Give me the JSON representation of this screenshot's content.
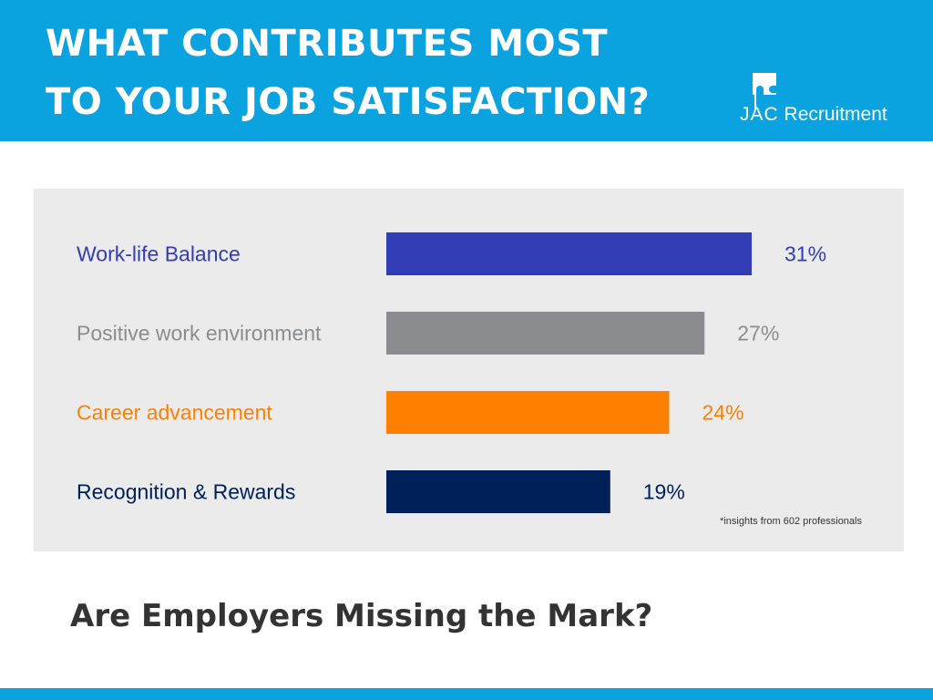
{
  "header": {
    "title_line1": "WHAT CONTRIBUTES MOST",
    "title_line2": "TO YOUR JOB SATISFACTION?",
    "background": "#0aa3e0"
  },
  "logo": {
    "brand_prefix": "JAC",
    "brand_suffix": " Recruitment",
    "icon": "puzzle-piece-logo-icon"
  },
  "chart_data": {
    "type": "bar",
    "orientation": "horizontal",
    "categories": [
      "Work-life Balance",
      "Positive work environment",
      "Career advancement",
      "Recognition & Rewards"
    ],
    "values": [
      31,
      27,
      24,
      19
    ],
    "value_labels": [
      "31%",
      "27%",
      "24%",
      "19%"
    ],
    "colors": [
      "#323cb4",
      "#8a8d90",
      "#ff8000",
      "#00205a"
    ],
    "label_colors": [
      "#323cb4",
      "#8a8d90",
      "#ff8000",
      "#00205a"
    ],
    "unit": "%",
    "xlim": [
      0,
      31
    ],
    "grid": false,
    "legend": "none"
  },
  "footnote": "*insights from 602 professionals",
  "subtitle": "Are Employers Missing the Mark?",
  "colors": {
    "accent": "#0aa3e0",
    "panel": "#ebebeb",
    "subtitle": "#333333"
  }
}
